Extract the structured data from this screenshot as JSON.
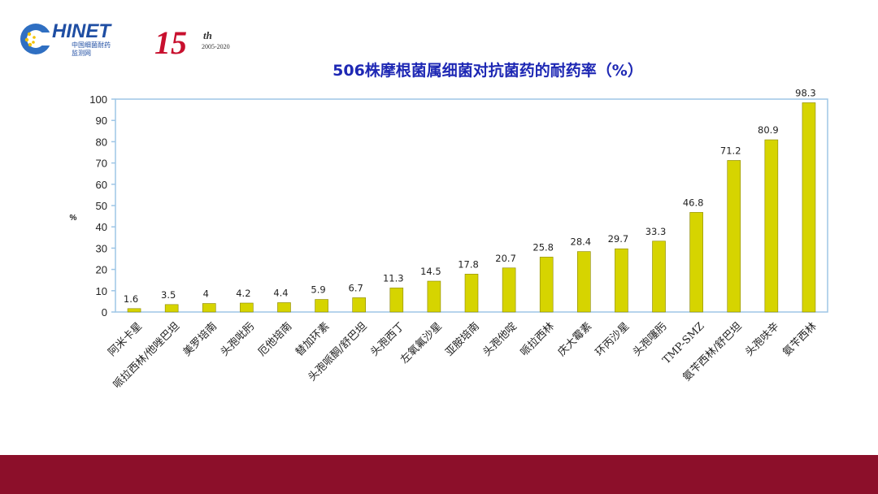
{
  "header": {
    "logo_main": "HINET",
    "logo_letter": "C",
    "logo_cn_line1": "中国细菌耐药",
    "logo_cn_line2": "监测网",
    "anniv_number": "15",
    "anniv_suffix": "th",
    "anniv_years": "2005-2020"
  },
  "chart_data": {
    "type": "bar",
    "title": "506株摩根菌属细菌对抗菌药的耐药率（%）",
    "ylabel": "%",
    "xlabel": "",
    "ylim": [
      0,
      100
    ],
    "yticks": [
      0,
      10,
      20,
      30,
      40,
      50,
      60,
      70,
      80,
      90,
      100
    ],
    "grid": false,
    "bar_color": "#d6d400",
    "categories": [
      "阿米卡星",
      "哌拉西林/他唑巴坦",
      "美罗培南",
      "头孢吡肟",
      "厄他培南",
      "替加环素",
      "头孢哌酮/舒巴坦",
      "头孢西丁",
      "左氧氟沙星",
      "亚胺培南",
      "头孢他啶",
      "哌拉西林",
      "庆大霉素",
      "环丙沙星",
      "头孢噻肟",
      "TMP-SMZ",
      "氨苄西林/舒巴坦",
      "头孢呋辛",
      "氨苄西林"
    ],
    "values": [
      1.6,
      3.5,
      4,
      4.2,
      4.4,
      5.9,
      6.7,
      11.3,
      14.5,
      17.8,
      20.7,
      25.8,
      28.4,
      29.7,
      33.3,
      46.8,
      71.2,
      80.9,
      98.3
    ]
  }
}
